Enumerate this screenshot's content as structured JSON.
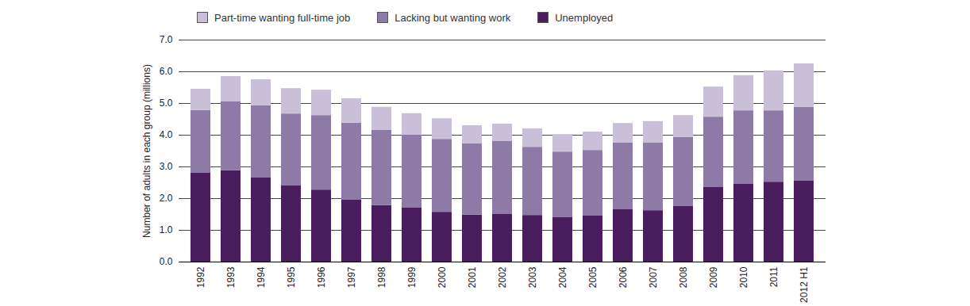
{
  "chart_data": {
    "type": "bar",
    "stacked": true,
    "grid": true,
    "legend": "top",
    "y_label": "Number of adults in each group (millions)",
    "categories": [
      "1992",
      "1993",
      "1994",
      "1995",
      "1996",
      "1997",
      "1998",
      "1999",
      "2000",
      "2001",
      "2002",
      "2003",
      "2004",
      "2005",
      "2006",
      "2007",
      "2008",
      "2009",
      "2010",
      "2011",
      "2012 H1"
    ],
    "series": [
      {
        "name": "Unemployed",
        "color": "#4a1d5e",
        "values": [
          2.8,
          2.88,
          2.65,
          2.4,
          2.27,
          1.95,
          1.78,
          1.7,
          1.57,
          1.48,
          1.5,
          1.47,
          1.4,
          1.45,
          1.65,
          1.62,
          1.75,
          2.35,
          2.45,
          2.52,
          2.55
        ]
      },
      {
        "name": "Lacking but wanting work",
        "color": "#8e7aa6",
        "values": [
          1.98,
          2.17,
          2.28,
          2.27,
          2.35,
          2.43,
          2.37,
          2.3,
          2.3,
          2.25,
          2.3,
          2.15,
          2.07,
          2.07,
          2.1,
          2.13,
          2.18,
          2.22,
          2.32,
          2.25,
          2.33
        ]
      },
      {
        "name": "Part-time wanting full-time job",
        "color": "#c9bfd9",
        "values": [
          0.67,
          0.8,
          0.82,
          0.8,
          0.8,
          0.77,
          0.73,
          0.68,
          0.65,
          0.57,
          0.55,
          0.58,
          0.55,
          0.58,
          0.62,
          0.68,
          0.69,
          0.95,
          1.11,
          1.26,
          1.37
        ]
      }
    ],
    "ylim": [
      0,
      7
    ],
    "yticks": [
      0,
      1,
      2,
      3,
      4,
      5,
      6,
      7
    ]
  }
}
